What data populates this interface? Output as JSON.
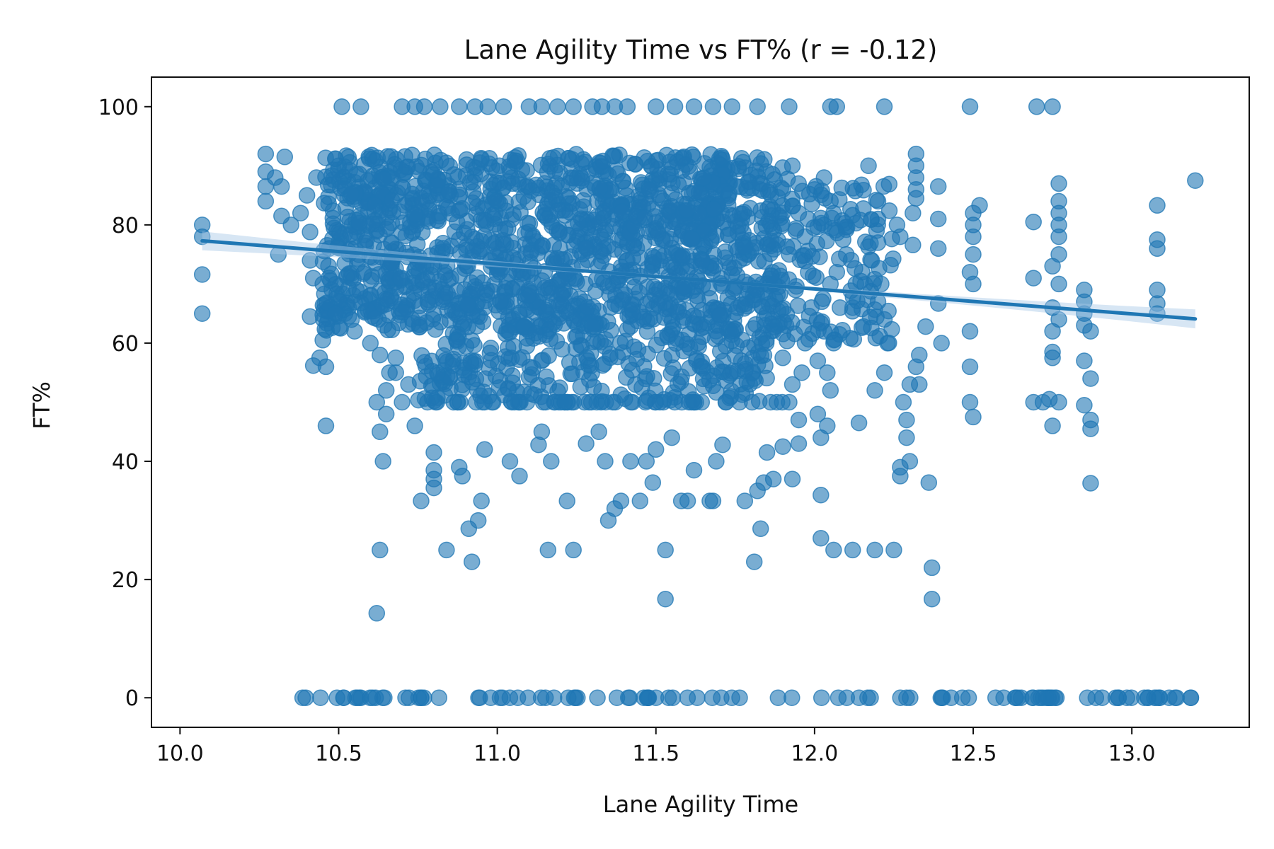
{
  "colors": {
    "point": "#1f77b4",
    "line": "#1f77b4",
    "band": "#a6c8e6",
    "axis": "#111111"
  },
  "chart_data": {
    "type": "scatter",
    "title": "Lane Agility Time vs FT% (r = -0.12)",
    "xlabel": "Lane Agility Time",
    "ylabel": "FT%",
    "xlim": [
      9.91,
      13.37
    ],
    "ylim": [
      -5,
      105
    ],
    "xticks": [
      10.0,
      10.5,
      11.0,
      11.5,
      12.0,
      12.5,
      13.0
    ],
    "xtick_labels": [
      "10.0",
      "10.5",
      "11.0",
      "11.5",
      "12.0",
      "12.5",
      "13.0"
    ],
    "yticks": [
      0,
      20,
      40,
      60,
      80,
      100
    ],
    "ytick_labels": [
      "0",
      "20",
      "40",
      "60",
      "80",
      "100"
    ],
    "regression": {
      "x": [
        10.07,
        13.2
      ],
      "y": [
        77.3,
        64.1
      ],
      "ci_halfwidth_ends": 1.6,
      "ci_halfwidth_mid": 0.3
    },
    "points": [
      [
        10.07,
        80
      ],
      [
        10.07,
        78
      ],
      [
        10.07,
        71.6
      ],
      [
        10.07,
        65
      ],
      [
        10.27,
        92
      ],
      [
        10.27,
        89
      ],
      [
        10.27,
        86.5
      ],
      [
        10.27,
        84
      ],
      [
        10.3,
        88
      ],
      [
        10.31,
        75
      ],
      [
        10.32,
        81.5
      ],
      [
        10.32,
        86.5
      ],
      [
        10.33,
        91.5
      ],
      [
        10.41,
        78.8
      ],
      [
        10.41,
        74
      ],
      [
        10.42,
        71
      ],
      [
        10.41,
        64.5
      ],
      [
        10.42,
        56.2
      ],
      [
        10.44,
        57.5
      ],
      [
        10.45,
        60.5
      ],
      [
        10.45,
        64.8
      ],
      [
        10.45,
        70
      ],
      [
        10.46,
        56
      ],
      [
        10.46,
        46
      ],
      [
        10.51,
        100
      ],
      [
        10.57,
        100
      ],
      [
        10.62,
        14.3
      ],
      [
        10.63,
        25
      ],
      [
        10.64,
        40
      ],
      [
        10.63,
        45
      ],
      [
        10.62,
        50
      ],
      [
        10.65,
        52
      ],
      [
        10.66,
        55
      ],
      [
        10.68,
        57.5
      ],
      [
        10.74,
        46
      ],
      [
        10.76,
        33.3
      ],
      [
        10.8,
        38.5
      ],
      [
        10.8,
        37
      ],
      [
        10.8,
        35.5
      ],
      [
        10.8,
        41.5
      ],
      [
        10.84,
        25
      ],
      [
        10.88,
        39
      ],
      [
        10.89,
        37.5
      ],
      [
        10.91,
        28.6
      ],
      [
        10.92,
        23
      ],
      [
        10.94,
        30
      ],
      [
        10.95,
        33.3
      ],
      [
        10.96,
        42
      ],
      [
        11.04,
        40
      ],
      [
        11.07,
        37.5
      ],
      [
        11.13,
        42.8
      ],
      [
        11.14,
        45
      ],
      [
        11.16,
        25
      ],
      [
        11.17,
        40
      ],
      [
        11.22,
        33.3
      ],
      [
        11.24,
        25
      ],
      [
        11.28,
        43
      ],
      [
        11.32,
        45
      ],
      [
        11.34,
        40
      ],
      [
        11.35,
        30
      ],
      [
        11.37,
        32
      ],
      [
        11.39,
        33.3
      ],
      [
        11.42,
        40
      ],
      [
        11.45,
        33.3
      ],
      [
        11.47,
        40
      ],
      [
        11.5,
        42
      ],
      [
        11.49,
        36.4
      ],
      [
        11.53,
        16.7
      ],
      [
        11.53,
        25
      ],
      [
        11.55,
        44
      ],
      [
        11.58,
        33.3
      ],
      [
        11.6,
        33.3
      ],
      [
        11.62,
        38.5
      ],
      [
        11.67,
        33.3
      ],
      [
        11.68,
        33.3
      ],
      [
        11.69,
        40
      ],
      [
        11.71,
        42.8
      ],
      [
        11.78,
        33.3
      ],
      [
        11.81,
        23
      ],
      [
        11.82,
        35
      ],
      [
        11.83,
        28.6
      ],
      [
        11.84,
        36.4
      ],
      [
        11.85,
        41.5
      ],
      [
        11.87,
        37
      ],
      [
        11.93,
        37
      ],
      [
        11.9,
        42.5
      ],
      [
        11.95,
        43
      ],
      [
        12.02,
        27
      ],
      [
        12.02,
        34.3
      ],
      [
        12.02,
        44
      ],
      [
        12.06,
        25
      ],
      [
        12.12,
        25
      ],
      [
        12.19,
        25
      ],
      [
        12.25,
        25
      ],
      [
        12.27,
        37.5
      ],
      [
        12.27,
        39
      ],
      [
        12.3,
        40
      ],
      [
        12.36,
        36.4
      ],
      [
        12.37,
        22
      ],
      [
        12.37,
        16.7
      ],
      [
        12.22,
        100
      ],
      [
        12.49,
        100
      ],
      [
        12.7,
        100
      ],
      [
        12.75,
        100
      ],
      [
        12.07,
        100
      ],
      [
        12.05,
        100
      ],
      [
        11.92,
        100
      ],
      [
        11.82,
        100
      ],
      [
        11.74,
        100
      ],
      [
        11.68,
        100
      ],
      [
        11.62,
        100
      ],
      [
        11.56,
        100
      ],
      [
        11.5,
        100
      ],
      [
        11.41,
        100
      ],
      [
        11.37,
        100
      ],
      [
        11.33,
        100
      ],
      [
        11.3,
        100
      ],
      [
        11.24,
        100
      ],
      [
        11.19,
        100
      ],
      [
        11.14,
        100
      ],
      [
        11.1,
        100
      ],
      [
        11.02,
        100
      ],
      [
        10.97,
        100
      ],
      [
        10.93,
        100
      ],
      [
        10.88,
        100
      ],
      [
        10.82,
        100
      ],
      [
        10.77,
        100
      ],
      [
        10.74,
        100
      ],
      [
        10.7,
        100
      ],
      [
        12.5,
        82
      ],
      [
        12.5,
        80
      ],
      [
        12.5,
        78
      ],
      [
        12.5,
        75
      ],
      [
        12.49,
        72
      ],
      [
        12.5,
        70
      ],
      [
        12.49,
        62
      ],
      [
        12.49,
        56
      ],
      [
        12.49,
        50
      ],
      [
        12.5,
        47.5
      ],
      [
        12.52,
        83.3
      ],
      [
        12.69,
        80.5
      ],
      [
        12.69,
        71
      ],
      [
        12.69,
        50
      ],
      [
        12.72,
        50
      ],
      [
        12.75,
        73
      ],
      [
        12.75,
        66
      ],
      [
        12.75,
        62
      ],
      [
        12.75,
        58.5
      ],
      [
        12.75,
        57.5
      ],
      [
        12.74,
        50.5
      ],
      [
        12.75,
        46
      ],
      [
        12.77,
        87
      ],
      [
        12.77,
        84
      ],
      [
        12.77,
        82
      ],
      [
        12.77,
        80
      ],
      [
        12.77,
        78
      ],
      [
        12.77,
        75
      ],
      [
        12.77,
        70
      ],
      [
        12.77,
        64
      ],
      [
        12.77,
        50
      ],
      [
        12.85,
        69
      ],
      [
        12.85,
        67
      ],
      [
        12.85,
        65
      ],
      [
        12.85,
        63
      ],
      [
        12.85,
        57
      ],
      [
        12.85,
        49.5
      ],
      [
        12.87,
        62
      ],
      [
        12.87,
        54
      ],
      [
        12.87,
        47
      ],
      [
        12.87,
        45.5
      ],
      [
        12.87,
        36.3
      ],
      [
        13.08,
        83.3
      ],
      [
        13.08,
        77.5
      ],
      [
        13.08,
        76
      ],
      [
        13.08,
        69
      ],
      [
        13.08,
        66.7
      ],
      [
        13.08,
        65
      ],
      [
        13.2,
        87.5
      ],
      [
        12.32,
        92
      ],
      [
        12.32,
        90
      ],
      [
        12.32,
        88
      ],
      [
        12.32,
        86
      ],
      [
        12.32,
        84.5
      ],
      [
        12.31,
        82
      ],
      [
        12.31,
        76.6
      ],
      [
        12.33,
        58
      ],
      [
        12.32,
        56
      ],
      [
        12.33,
        53
      ],
      [
        12.28,
        50
      ],
      [
        12.29,
        47
      ],
      [
        12.29,
        44
      ],
      [
        12.3,
        53
      ],
      [
        12.35,
        62.8
      ],
      [
        12.39,
        86.5
      ],
      [
        12.39,
        81
      ],
      [
        12.39,
        76
      ],
      [
        12.4,
        60
      ],
      [
        12.39,
        66.7
      ],
      [
        12.2,
        84
      ],
      [
        12.2,
        81
      ],
      [
        12.2,
        77
      ],
      [
        12.18,
        74
      ],
      [
        12.15,
        72
      ],
      [
        12.13,
        70
      ],
      [
        12.12,
        66
      ],
      [
        12.17,
        90
      ],
      [
        12.21,
        70
      ],
      [
        12.2,
        67
      ],
      [
        12.22,
        64
      ],
      [
        12.26,
        80
      ],
      [
        12.27,
        78
      ],
      [
        12.23,
        60
      ],
      [
        12.22,
        55
      ],
      [
        12.19,
        52
      ],
      [
        12.14,
        46.5
      ],
      [
        12.03,
        88
      ],
      [
        12.0,
        86
      ],
      [
        12.05,
        84
      ],
      [
        12.06,
        82
      ],
      [
        12.03,
        80
      ],
      [
        12.09,
        77.5
      ],
      [
        12.1,
        75
      ],
      [
        12.07,
        72
      ],
      [
        12.05,
        70
      ],
      [
        12.08,
        66
      ],
      [
        12.03,
        62
      ],
      [
        12.06,
        60
      ],
      [
        12.01,
        57
      ],
      [
        12.04,
        55
      ],
      [
        12.05,
        52
      ],
      [
        12.01,
        48
      ],
      [
        12.04,
        46
      ],
      [
        11.93,
        90
      ],
      [
        11.9,
        86
      ],
      [
        11.95,
        82
      ],
      [
        11.97,
        78
      ],
      [
        11.92,
        75
      ],
      [
        11.98,
        72
      ],
      [
        11.94,
        69
      ],
      [
        11.99,
        66
      ],
      [
        11.91,
        63
      ],
      [
        11.97,
        60
      ],
      [
        11.9,
        57.5
      ],
      [
        11.96,
        55
      ],
      [
        11.93,
        53
      ],
      [
        11.92,
        50
      ],
      [
        11.95,
        47
      ],
      [
        10.35,
        80
      ],
      [
        10.38,
        82
      ],
      [
        10.4,
        85
      ],
      [
        10.43,
        88
      ],
      [
        10.47,
        76
      ],
      [
        10.5,
        90
      ],
      [
        10.55,
        78
      ],
      [
        10.58,
        72
      ],
      [
        10.6,
        68
      ],
      [
        10.52,
        65
      ],
      [
        10.55,
        62
      ],
      [
        10.6,
        60
      ],
      [
        10.63,
        58
      ],
      [
        10.68,
        55
      ],
      [
        10.72,
        53
      ],
      [
        10.7,
        50
      ],
      [
        10.65,
        48
      ]
    ],
    "dense_clusters": [
      {
        "x_range": [
          10.45,
          11.9
        ],
        "y_range": [
          62,
          92
        ],
        "count": 1500
      },
      {
        "x_range": [
          10.75,
          11.85
        ],
        "y_range": [
          50,
          62
        ],
        "count": 260
      },
      {
        "x_range": [
          11.9,
          12.25
        ],
        "y_range": [
          60,
          88
        ],
        "count": 120
      }
    ],
    "band_rows": [
      {
        "y": 50,
        "x_range": [
          10.78,
          11.9
        ],
        "count": 60
      },
      {
        "y": 0,
        "x_range": [
          10.33,
          13.2
        ],
        "count": 110
      }
    ]
  }
}
